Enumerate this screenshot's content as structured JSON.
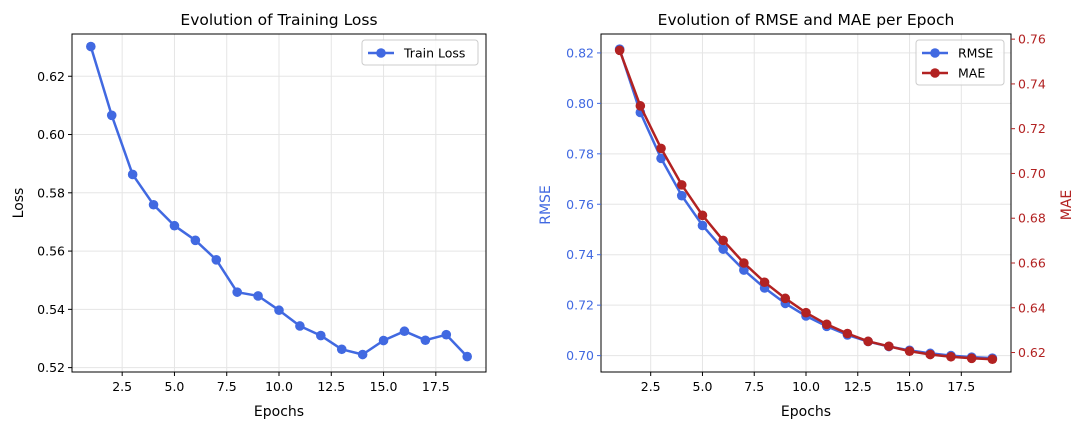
{
  "chart_data": [
    {
      "type": "line",
      "title": "Evolution of Training Loss",
      "xlabel": "Epochs",
      "ylabel": "Loss",
      "xlim": [
        0.1,
        19.9
      ],
      "ylim": [
        0.5185,
        0.6345
      ],
      "grid": true,
      "legend_position": "top-right",
      "x_ticks": [
        2.5,
        5.0,
        7.5,
        10.0,
        12.5,
        15.0,
        17.5
      ],
      "x_tick_labels": [
        "2.5",
        "5.0",
        "7.5",
        "10.0",
        "12.5",
        "15.0",
        "17.5"
      ],
      "y_ticks": [
        0.52,
        0.54,
        0.56,
        0.58,
        0.6,
        0.62
      ],
      "y_tick_labels": [
        "0.52",
        "0.54",
        "0.56",
        "0.58",
        "0.60",
        "0.62"
      ],
      "x": [
        1,
        2,
        3,
        4,
        5,
        6,
        7,
        8,
        9,
        10,
        11,
        12,
        13,
        14,
        15,
        16,
        17,
        18,
        19
      ],
      "series": [
        {
          "name": "Train Loss",
          "color": "#4169e1",
          "values": [
            0.6302,
            0.6066,
            0.5863,
            0.5759,
            0.5687,
            0.5637,
            0.557,
            0.5459,
            0.5446,
            0.5397,
            0.5343,
            0.531,
            0.5263,
            0.5245,
            0.5293,
            0.5325,
            0.5294,
            0.5313,
            0.5238
          ]
        }
      ]
    },
    {
      "type": "line",
      "title": "Evolution of RMSE and MAE per Epoch",
      "xlabel": "Epochs",
      "ylabel": "RMSE",
      "ylabel_right": "MAE",
      "xlim": [
        0.1,
        19.9
      ],
      "ylim": [
        0.6935,
        0.8275
      ],
      "ylim_right": [
        0.6113,
        0.7623
      ],
      "grid": true,
      "legend_position": "top-right",
      "x_ticks": [
        2.5,
        5.0,
        7.5,
        10.0,
        12.5,
        15.0,
        17.5
      ],
      "x_tick_labels": [
        "2.5",
        "5.0",
        "7.5",
        "10.0",
        "12.5",
        "15.0",
        "17.5"
      ],
      "y_ticks": [
        0.7,
        0.72,
        0.74,
        0.76,
        0.78,
        0.8,
        0.82
      ],
      "y_tick_labels": [
        "0.70",
        "0.72",
        "0.74",
        "0.76",
        "0.78",
        "0.80",
        "0.82"
      ],
      "y_ticks_right": [
        0.62,
        0.64,
        0.66,
        0.68,
        0.7,
        0.72,
        0.74,
        0.76
      ],
      "y_tick_labels_right": [
        "0.62",
        "0.64",
        "0.66",
        "0.68",
        "0.70",
        "0.72",
        "0.74",
        "0.76"
      ],
      "x": [
        1,
        2,
        3,
        4,
        5,
        6,
        7,
        8,
        9,
        10,
        11,
        12,
        13,
        14,
        15,
        16,
        17,
        18,
        19
      ],
      "series": [
        {
          "name": "RMSE",
          "axis": "left",
          "color": "#4169e1",
          "values": [
            0.8215,
            0.7964,
            0.7782,
            0.7634,
            0.7516,
            0.7422,
            0.7339,
            0.7268,
            0.7207,
            0.7157,
            0.7116,
            0.7082,
            0.7056,
            0.7036,
            0.7021,
            0.7009,
            0.7,
            0.6994,
            0.699
          ]
        },
        {
          "name": "MAE",
          "axis": "right",
          "color": "#b22222",
          "values": [
            0.755,
            0.7302,
            0.7112,
            0.6949,
            0.6813,
            0.6701,
            0.66,
            0.6514,
            0.6442,
            0.6378,
            0.6326,
            0.6285,
            0.625,
            0.6228,
            0.6206,
            0.6191,
            0.6181,
            0.6174,
            0.617
          ]
        }
      ]
    }
  ]
}
